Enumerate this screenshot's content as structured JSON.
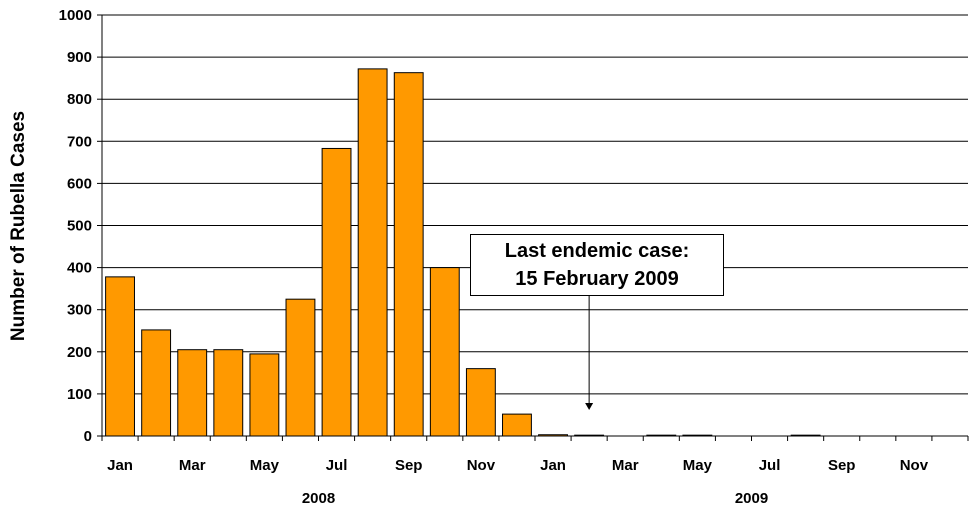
{
  "chart_data": {
    "type": "bar",
    "ylabel": "Number of Rubella Cases",
    "ylim": [
      0,
      1000
    ],
    "yticks": [
      0,
      100,
      200,
      300,
      400,
      500,
      600,
      700,
      800,
      900,
      1000
    ],
    "grid": true,
    "bar_color": "#FF9900",
    "categories": [
      "Jan 2008",
      "Feb 2008",
      "Mar 2008",
      "Apr 2008",
      "May 2008",
      "Jun 2008",
      "Jul 2008",
      "Aug 2008",
      "Sep 2008",
      "Oct 2008",
      "Nov 2008",
      "Dec 2008",
      "Jan 2009",
      "Feb 2009",
      "Mar 2009",
      "Apr 2009",
      "May 2009",
      "Jun 2009",
      "Jul 2009",
      "Aug 2009",
      "Sep 2009",
      "Oct 2009",
      "Nov 2009",
      "Dec 2009"
    ],
    "values": [
      378,
      252,
      205,
      205,
      195,
      325,
      683,
      872,
      863,
      400,
      160,
      52,
      3,
      2,
      0,
      2,
      2,
      0,
      0,
      2,
      0,
      0,
      0,
      0
    ],
    "x_tick_labels": [
      "Jan",
      "",
      "Mar",
      "",
      "May",
      "",
      "Jul",
      "",
      "Sep",
      "",
      "Nov",
      "",
      "Jan",
      "",
      "Mar",
      "",
      "May",
      "",
      "Jul",
      "",
      "Sep",
      "",
      "Nov",
      ""
    ],
    "year_labels": [
      {
        "label": "2008",
        "center_index": 5.5
      },
      {
        "label": "2009",
        "center_index": 17.5
      }
    ],
    "annotation": {
      "line1": "Last endemic case:",
      "line2": "15 February 2009",
      "arrow_target_index": 13
    }
  }
}
